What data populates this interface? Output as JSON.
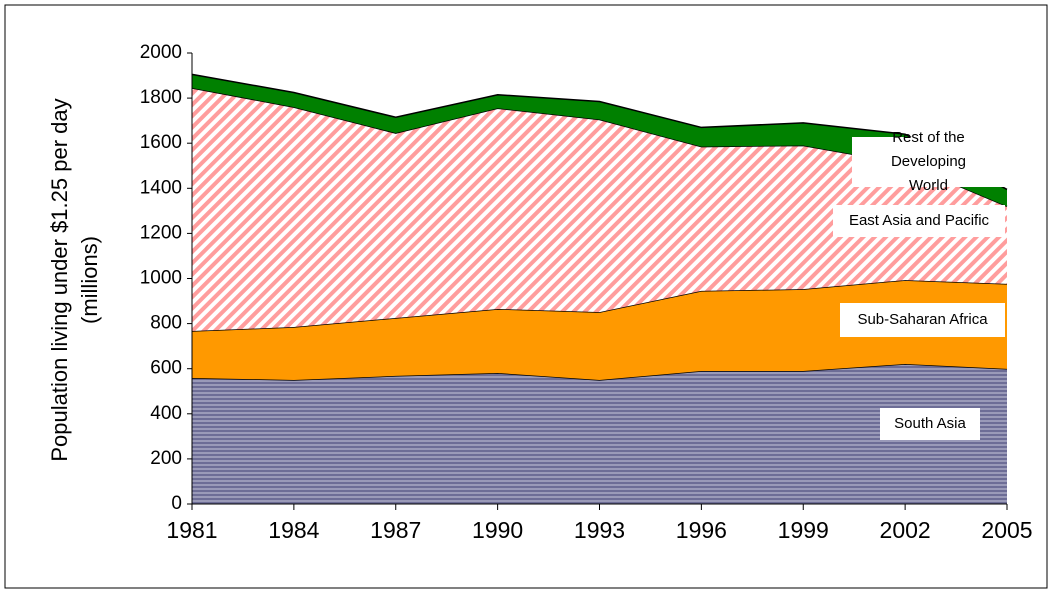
{
  "chart_data": {
    "type": "stacked-area",
    "y_label": "Population living under $1.25 per day (millions)",
    "x": [
      1981,
      1984,
      1987,
      1990,
      1993,
      1996,
      1999,
      2002,
      2005
    ],
    "xlim": [
      1981,
      2005
    ],
    "ylim": [
      0,
      2000
    ],
    "yticks": [
      0,
      200,
      400,
      600,
      800,
      1000,
      1200,
      1400,
      1600,
      1800,
      2000
    ],
    "series": [
      {
        "name": "South Asia",
        "color": "#7f7fa8",
        "values": [
          559,
          550,
          568,
          581,
          550,
          590,
          590,
          621,
          599
        ]
      },
      {
        "name": "Sub-Saharan Africa",
        "color": "#ff9900",
        "values": [
          208,
          235,
          257,
          284,
          301,
          355,
          363,
          372,
          377
        ]
      },
      {
        "name": "East Asia and Pacific",
        "color": "#ff9999",
        "values": [
          1078,
          975,
          820,
          890,
          854,
          640,
          637,
          517,
          344
        ]
      },
      {
        "name": "Rest of the Developing World",
        "color": "#008000",
        "values": [
          60,
          65,
          70,
          60,
          80,
          85,
          100,
          130,
          75
        ]
      }
    ]
  }
}
